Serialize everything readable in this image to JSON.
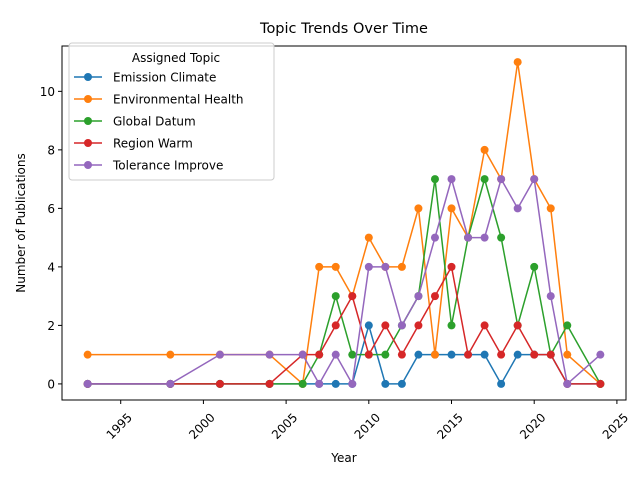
{
  "chart_data": {
    "type": "line",
    "title": "Topic Trends Over Time",
    "xlabel": "Year",
    "ylabel": "Number of Publications",
    "xlim": [
      1991.45,
      2025.55
    ],
    "ylim": [
      -0.55,
      11.55
    ],
    "x_ticks": [
      1995,
      2000,
      2005,
      2010,
      2015,
      2020,
      2025
    ],
    "y_ticks": [
      0,
      2,
      4,
      6,
      8,
      10
    ],
    "grid": false,
    "legend_title": "Assigned Topic",
    "legend_position": "top-left",
    "x": [
      1993,
      1998,
      2001,
      2004,
      2006,
      2007,
      2008,
      2009,
      2010,
      2011,
      2012,
      2013,
      2014,
      2015,
      2016,
      2017,
      2018,
      2019,
      2020,
      2021,
      2022,
      2024
    ],
    "series": [
      {
        "name": "Emission Climate",
        "color": "#1f77b4",
        "values": [
          0,
          0,
          0,
          0,
          0,
          0,
          0,
          0,
          2,
          0,
          0,
          1,
          1,
          1,
          1,
          1,
          0,
          1,
          1,
          1,
          0,
          0
        ]
      },
      {
        "name": "Environmental Health",
        "color": "#ff7f0e",
        "values": [
          1,
          1,
          1,
          1,
          0,
          4,
          4,
          3,
          5,
          4,
          4,
          6,
          1,
          6,
          5,
          8,
          7,
          11,
          7,
          6,
          1,
          0
        ]
      },
      {
        "name": "Global Datum",
        "color": "#2ca02c",
        "values": [
          0,
          0,
          0,
          0,
          0,
          1,
          3,
          1,
          1,
          1,
          2,
          3,
          7,
          2,
          5,
          7,
          5,
          2,
          4,
          1,
          2,
          0
        ]
      },
      {
        "name": "Region Warm",
        "color": "#d62728",
        "values": [
          0,
          0,
          0,
          0,
          1,
          1,
          2,
          3,
          1,
          2,
          1,
          2,
          3,
          4,
          1,
          2,
          1,
          2,
          1,
          1,
          0,
          0
        ]
      },
      {
        "name": "Tolerance Improve",
        "color": "#9467bd",
        "values": [
          0,
          0,
          1,
          1,
          1,
          0,
          1,
          0,
          4,
          4,
          2,
          3,
          5,
          7,
          5,
          5,
          7,
          6,
          7,
          3,
          0,
          1
        ]
      }
    ]
  }
}
